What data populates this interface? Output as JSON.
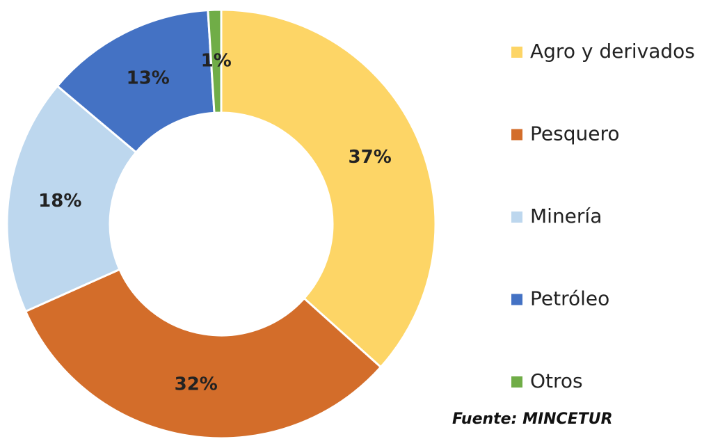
{
  "chart_data": {
    "type": "donut",
    "categories": [
      "Agro y derivados",
      "Pesquero",
      "Minería",
      "Petróleo",
      "Otros"
    ],
    "values": [
      37,
      32,
      18,
      13,
      1
    ],
    "value_labels": [
      "37%",
      "32%",
      "18%",
      "13%",
      "1%"
    ],
    "colors": [
      "#FDD566",
      "#D36D2A",
      "#BDD7EE",
      "#4472C4",
      "#70AD47"
    ],
    "source": "Fuente: MINCETUR"
  }
}
